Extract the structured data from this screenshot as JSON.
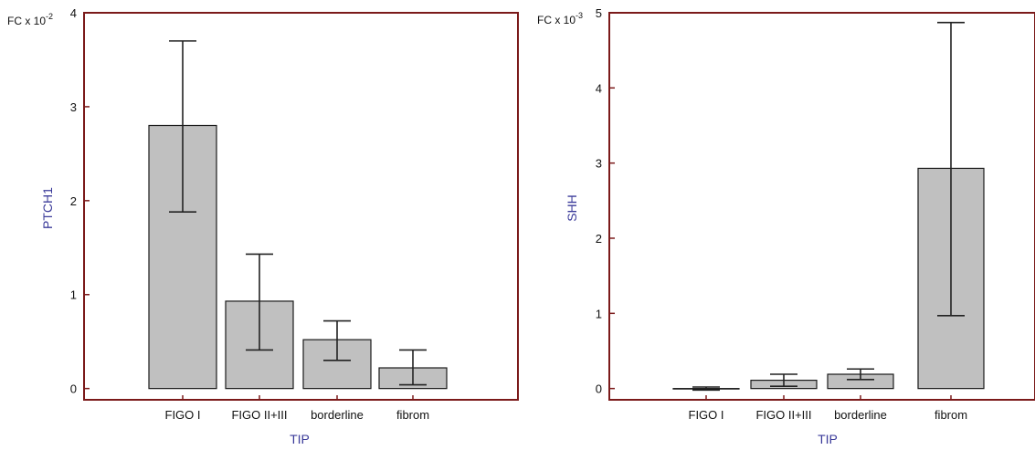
{
  "chart_data": [
    {
      "type": "bar",
      "scale_label": "FC x 10",
      "scale_exponent": "-2",
      "ylabel": "PTCH1",
      "xlabel": "TIP",
      "categories": [
        "FIGO I",
        "FIGO II+III",
        "borderline",
        "fibrom"
      ],
      "values": [
        2.8,
        0.93,
        0.52,
        0.22
      ],
      "error_low": [
        1.88,
        0.41,
        0.3,
        0.04
      ],
      "error_high": [
        3.7,
        1.43,
        0.72,
        0.41
      ],
      "ylim": [
        -0.12,
        4.0
      ],
      "yticks": [
        0,
        1,
        2,
        3,
        4
      ],
      "grid": false
    },
    {
      "type": "bar",
      "scale_label": "FC x 10",
      "scale_exponent": "-3",
      "ylabel": "SHH",
      "xlabel": "TIP",
      "categories": [
        "FIGO I",
        "FIGO II+III",
        "borderline",
        "fibrom"
      ],
      "values": [
        0.0,
        0.11,
        0.19,
        2.93
      ],
      "error_low": [
        -0.02,
        0.03,
        0.12,
        0.97
      ],
      "error_high": [
        0.02,
        0.19,
        0.26,
        4.87
      ],
      "ylim": [
        -0.15,
        5.0
      ],
      "yticks": [
        0,
        1,
        2,
        3,
        4,
        5
      ],
      "grid": false
    }
  ],
  "colors": {
    "bar_fill": "#c0c0c0",
    "bar_stroke": "#1a1a1a",
    "frame": "#7b1a1a",
    "axis_title": "#3b3b9a",
    "text": "#111111"
  }
}
